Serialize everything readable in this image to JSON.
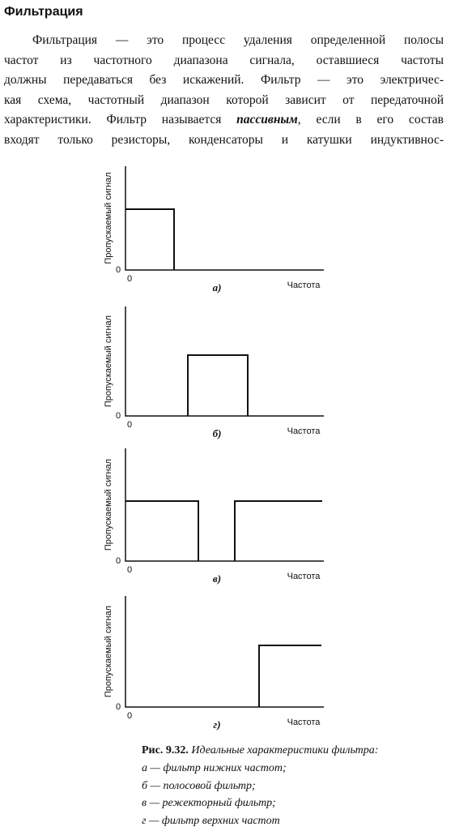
{
  "title": "Фильтрация",
  "paragraph": {
    "lines": [
      "Фильтрация — это процесс удаления определенной полосы",
      "частот из частотного диапазона сигнала, оставшиеся частоты",
      "должны передаваться без искажений. Фильтр — это электричес-",
      "кая схема, частотный диапазон которой зависит от передаточной"
    ],
    "line_5": {
      "before": "характеристики. Фильтр называется",
      "emphasis": "пассивным",
      "after": ", если в его состав"
    },
    "line_6": "входят только резисторы, конденсаторы и катушки индуктивнос-"
  },
  "figures": [
    {
      "y_axis_label": "Пропускаемый сигнал",
      "y_origin_label": "0",
      "x_origin_label": "0",
      "x_axis_label": "Частота",
      "panel_label": "а)"
    },
    {
      "y_axis_label": "Пропускаемый сигнал",
      "y_origin_label": "0",
      "x_origin_label": "0",
      "x_axis_label": "Частота",
      "panel_label": "б)"
    },
    {
      "y_axis_label": "Пропускаемый сигнал",
      "y_origin_label": "0",
      "x_origin_label": "0",
      "x_axis_label": "Частота",
      "panel_label": "в)"
    },
    {
      "y_axis_label": "Пропускаемый сигнал",
      "y_origin_label": "0",
      "x_origin_label": "0",
      "x_axis_label": "Частота",
      "panel_label": "г)"
    }
  ],
  "caption": {
    "number": "Рис. 9.32.",
    "title": "Идеальные характеристики фильтра:",
    "items": [
      "а — фильтр нижних частот;",
      "б — полосовой фильтр;",
      "в — режекторный фильтр;",
      "г — фильтр верхних частот"
    ]
  }
}
